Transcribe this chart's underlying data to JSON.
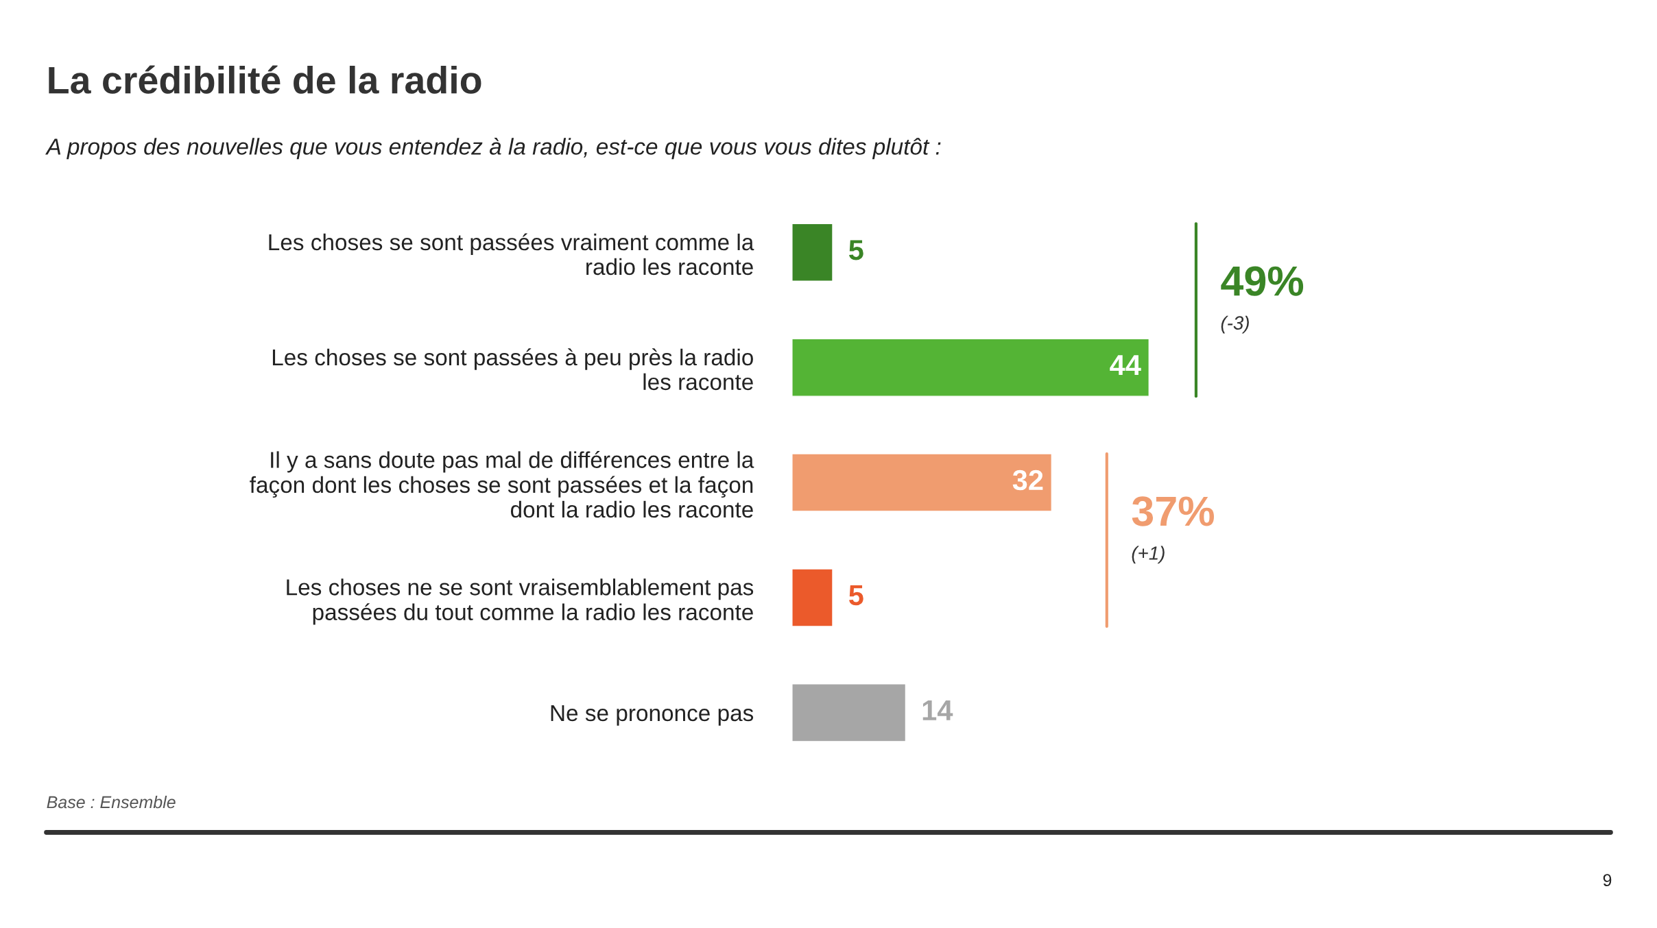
{
  "chart_data": {
    "type": "bar",
    "orientation": "horizontal",
    "title": "La crédibilité de la radio",
    "subtitle": "A propos des nouvelles que vous entendez à la radio, est-ce que vous vous dites plutôt :",
    "categories": [
      "Les choses se sont passées vraiment comme la\nradio les raconte",
      "Les choses se sont passées à peu près la radio\nles raconte",
      "Il y a sans doute pas mal de différences entre la\nfaçon dont les choses se sont passées et la façon\ndont la radio les raconte",
      "Les choses ne se sont vraisemblablement pas\npassées du tout comme la radio les raconte",
      "Ne se prononce pas"
    ],
    "values": [
      5,
      44,
      32,
      5,
      14
    ],
    "colors": [
      "#3a8526",
      "#54b435",
      "#f09c6f",
      "#eb5a2b",
      "#a6a6a6"
    ],
    "data_labels": true,
    "annotations": [
      "49%",
      "(-3)",
      "37%",
      "(+1)",
      "Base : Ensemble",
      "9"
    ]
  }
}
